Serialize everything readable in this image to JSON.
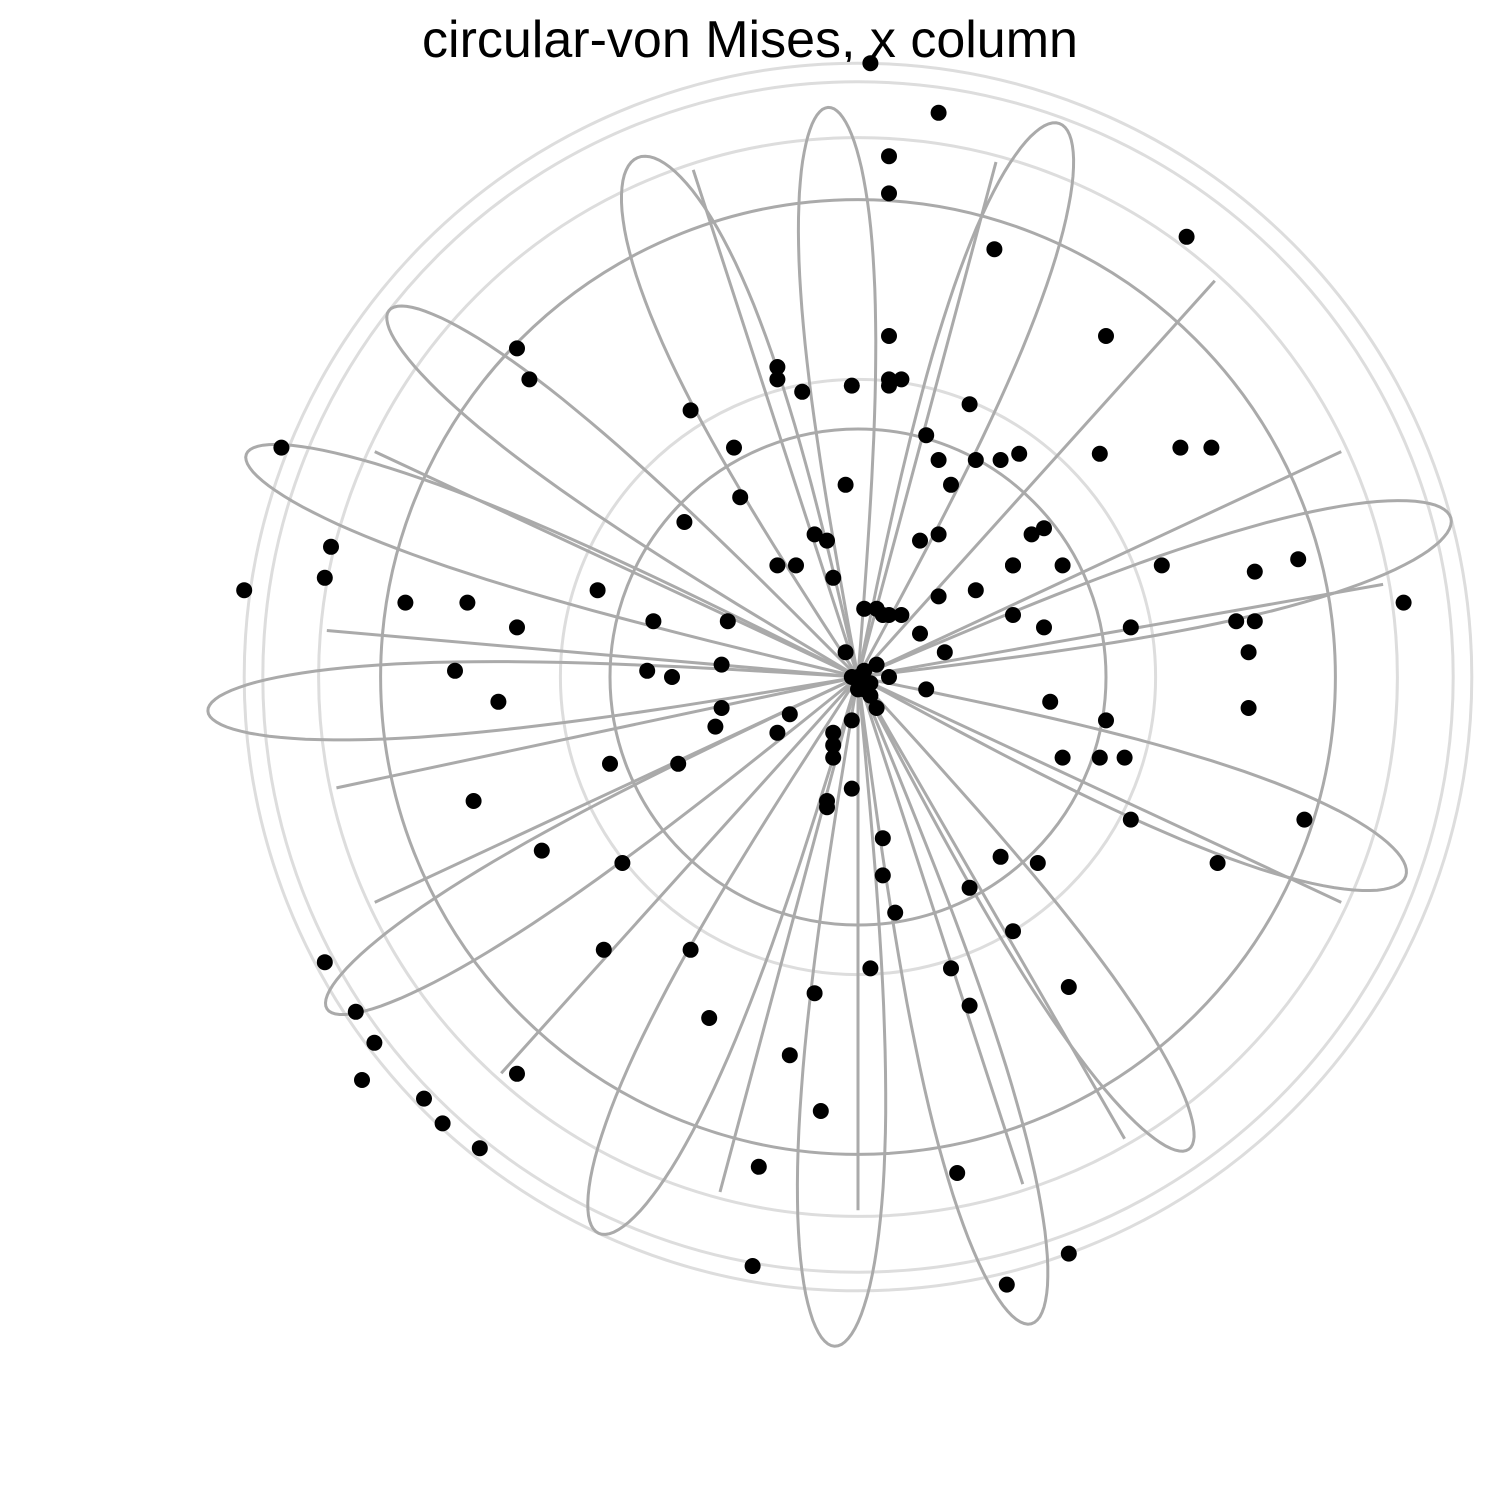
{
  "chart_data": {
    "type": "scatter",
    "title": "circular-von Mises, x column",
    "xlabel": "",
    "ylabel": "",
    "grid": "polar rings and radial spokes",
    "legend": "none",
    "colors": {
      "points": "#000000",
      "grid": "#aaaaaa",
      "grid_faint": "#dddddd"
    },
    "xlim": [
      -1.0,
      1.0
    ],
    "ylim": [
      -1.0,
      1.0
    ],
    "rings": [
      0.4,
      0.77
    ],
    "faint_rings": [
      0.48,
      0.87,
      0.96,
      0.99
    ],
    "spoke_angles_deg": [
      -90,
      48,
      228,
      25,
      205,
      192,
      155,
      10,
      175,
      335,
      300,
      75,
      255,
      108,
      288
    ],
    "petals": [
      {
        "angle_deg": 93,
        "length": 0.92,
        "width": 0.06
      },
      {
        "angle_deg": 113,
        "length": 0.91,
        "width": 0.08
      },
      {
        "angle_deg": 142,
        "length": 0.96,
        "width": 0.06
      },
      {
        "angle_deg": 160,
        "length": 1.05,
        "width": 0.06
      },
      {
        "angle_deg": 183,
        "length": 1.05,
        "width": 0.06
      },
      {
        "angle_deg": 212,
        "length": 1.01,
        "width": 0.06
      },
      {
        "angle_deg": 245,
        "length": 0.99,
        "width": 0.07
      },
      {
        "angle_deg": 268,
        "length": 1.08,
        "width": 0.07
      },
      {
        "angle_deg": 285,
        "length": 1.08,
        "width": 0.07
      },
      {
        "angle_deg": 305,
        "length": 0.93,
        "width": 0.06
      },
      {
        "angle_deg": 340,
        "length": 0.94,
        "width": 0.07
      },
      {
        "angle_deg": 15,
        "length": 0.99,
        "width": 0.07
      },
      {
        "angle_deg": 70,
        "length": 0.95,
        "width": 0.07
      }
    ],
    "points": [
      [
        0.02,
        0.99
      ],
      [
        0.13,
        0.91
      ],
      [
        0.05,
        0.84
      ],
      [
        0.05,
        0.78
      ],
      [
        0.22,
        0.69
      ],
      [
        0.05,
        0.55
      ],
      [
        0.05,
        0.48
      ],
      [
        -0.01,
        0.47
      ],
      [
        0.05,
        0.47
      ],
      [
        0.07,
        0.48
      ],
      [
        -0.13,
        0.5
      ],
      [
        -0.13,
        0.48
      ],
      [
        -0.09,
        0.46
      ],
      [
        0.18,
        0.44
      ],
      [
        0.11,
        0.39
      ],
      [
        0.19,
        0.35
      ],
      [
        0.13,
        0.35
      ],
      [
        0.15,
        0.31
      ],
      [
        0.23,
        0.35
      ],
      [
        -0.27,
        0.43
      ],
      [
        -0.2,
        0.37
      ],
      [
        -0.19,
        0.29
      ],
      [
        -0.28,
        0.25
      ],
      [
        -0.02,
        0.31
      ],
      [
        -0.07,
        0.23
      ],
      [
        -0.05,
        0.22
      ],
      [
        -0.13,
        0.18
      ],
      [
        -0.1,
        0.18
      ],
      [
        -0.04,
        0.16
      ],
      [
        0.03,
        0.11
      ],
      [
        0.04,
        0.1
      ],
      [
        0.05,
        0.1
      ],
      [
        0.01,
        0.11
      ],
      [
        0.1,
        0.22
      ],
      [
        0.13,
        0.23
      ],
      [
        0.13,
        0.13
      ],
      [
        0.19,
        0.14
      ],
      [
        0.1,
        0.07
      ],
      [
        0.25,
        0.18
      ],
      [
        0.25,
        0.18
      ],
      [
        0.3,
        0.08
      ],
      [
        0.33,
        0.18
      ],
      [
        0.44,
        0.08
      ],
      [
        0.49,
        0.18
      ],
      [
        0.31,
        -0.04
      ],
      [
        0.4,
        -0.07
      ],
      [
        0.33,
        -0.13
      ],
      [
        0.43,
        -0.13
      ],
      [
        0.44,
        -0.23
      ],
      [
        -0.55,
        0.53
      ],
      [
        -0.53,
        0.48
      ],
      [
        -0.42,
        0.14
      ],
      [
        -0.33,
        0.09
      ],
      [
        -0.21,
        0.09
      ],
      [
        -0.22,
        0.02
      ],
      [
        -0.22,
        -0.05
      ],
      [
        -0.04,
        -0.11
      ],
      [
        -0.11,
        -0.06
      ],
      [
        -0.13,
        -0.09
      ],
      [
        -0.04,
        -0.09
      ],
      [
        -0.02,
        0.04
      ],
      [
        0.0,
        0.0
      ],
      [
        0.01,
        0.01
      ],
      [
        0.02,
        -0.01
      ],
      [
        0.01,
        -0.02
      ],
      [
        0.03,
        0.02
      ],
      [
        -0.01,
        0.0
      ],
      [
        0.02,
        -0.03
      ],
      [
        0.0,
        -0.02
      ],
      [
        0.05,
        0.0
      ],
      [
        0.11,
        -0.02
      ],
      [
        0.03,
        -0.05
      ],
      [
        -0.01,
        -0.07
      ],
      [
        0.07,
        0.1
      ],
      [
        0.14,
        0.04
      ],
      [
        -0.34,
        0.01
      ],
      [
        -0.3,
        0.0
      ],
      [
        -0.55,
        0.08
      ],
      [
        -0.63,
        0.12
      ],
      [
        -0.73,
        0.12
      ],
      [
        -0.65,
        0.01
      ],
      [
        -0.58,
        -0.04
      ],
      [
        -0.4,
        -0.14
      ],
      [
        -0.29,
        -0.14
      ],
      [
        -0.23,
        -0.08
      ],
      [
        -0.04,
        -0.13
      ],
      [
        -0.05,
        -0.2
      ],
      [
        -0.05,
        -0.21
      ],
      [
        -0.01,
        -0.18
      ],
      [
        0.04,
        -0.26
      ],
      [
        0.04,
        -0.32
      ],
      [
        0.06,
        -0.38
      ],
      [
        0.18,
        -0.34
      ],
      [
        0.23,
        -0.29
      ],
      [
        0.25,
        -0.41
      ],
      [
        0.15,
        -0.47
      ],
      [
        0.02,
        -0.47
      ],
      [
        -0.07,
        -0.51
      ],
      [
        -0.38,
        -0.3
      ],
      [
        -0.41,
        -0.44
      ],
      [
        -0.27,
        -0.44
      ],
      [
        -0.67,
        -0.72
      ],
      [
        -0.7,
        -0.68
      ],
      [
        -0.78,
        -0.59
      ],
      [
        -0.81,
        -0.54
      ],
      [
        -0.86,
        -0.46
      ],
      [
        -0.62,
        -0.2
      ],
      [
        -0.51,
        -0.28
      ],
      [
        -0.24,
        -0.55
      ],
      [
        -0.11,
        -0.61
      ],
      [
        -0.06,
        -0.7
      ],
      [
        0.16,
        -0.8
      ],
      [
        0.29,
        -0.3
      ],
      [
        0.18,
        -0.53
      ],
      [
        0.34,
        -0.5
      ],
      [
        0.34,
        -0.93
      ],
      [
        0.58,
        -0.3
      ],
      [
        0.72,
        -0.23
      ],
      [
        0.63,
        0.04
      ],
      [
        0.63,
        -0.05
      ],
      [
        0.88,
        0.12
      ],
      [
        0.64,
        0.17
      ],
      [
        0.61,
        0.09
      ],
      [
        0.64,
        0.09
      ],
      [
        0.71,
        0.19
      ],
      [
        -0.93,
        0.37
      ],
      [
        -0.85,
        0.21
      ],
      [
        -0.86,
        0.16
      ],
      [
        -0.99,
        0.14
      ],
      [
        -0.61,
        -0.76
      ],
      [
        -0.55,
        -0.64
      ],
      [
        -0.16,
        -0.79
      ],
      [
        -0.17,
        -0.95
      ],
      [
        0.24,
        -0.98
      ],
      [
        0.53,
        0.71
      ],
      [
        0.4,
        0.55
      ],
      [
        0.3,
        0.24
      ],
      [
        0.28,
        0.23
      ],
      [
        0.25,
        0.1
      ],
      [
        0.57,
        0.37
      ],
      [
        0.52,
        0.37
      ],
      [
        0.39,
        0.36
      ],
      [
        0.26,
        0.36
      ],
      [
        0.39,
        -0.13
      ],
      [
        -0.8,
        -0.65
      ]
    ]
  }
}
